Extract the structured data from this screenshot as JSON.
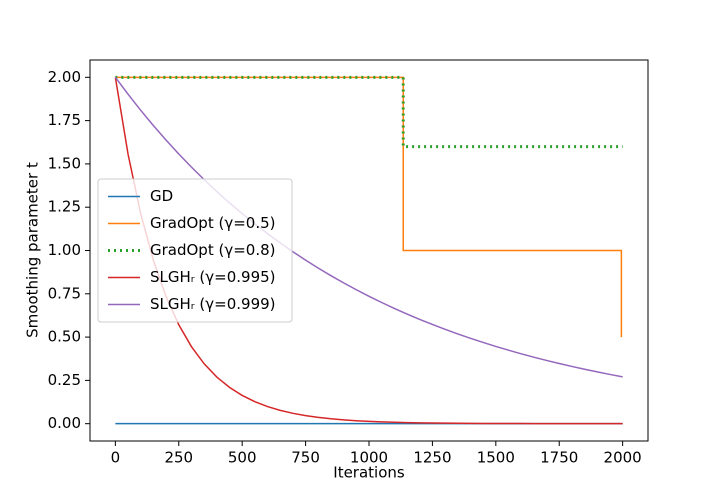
{
  "chart_data": {
    "type": "line",
    "x_label": "Iterations",
    "y_label": "Smoothing parameter t",
    "xlim": [
      -100,
      2100
    ],
    "ylim": [
      -0.1,
      2.1
    ],
    "xticks": [
      0,
      250,
      500,
      750,
      1000,
      1250,
      1500,
      1750,
      2000
    ],
    "yticks": [
      {
        "value": 0,
        "label": "0.00"
      },
      {
        "value": 0.25,
        "label": "0.25"
      },
      {
        "value": 0.5,
        "label": "0.50"
      },
      {
        "value": 0.75,
        "label": "0.75"
      },
      {
        "value": 1,
        "label": "1.00"
      },
      {
        "value": 1.25,
        "label": "1.25"
      },
      {
        "value": 1.5,
        "label": "1.50"
      },
      {
        "value": 1.75,
        "label": "1.75"
      },
      {
        "value": 2,
        "label": "2.00"
      }
    ],
    "grid": false,
    "legend": "center left",
    "series": [
      {
        "name": "GD",
        "color": "#1f77b4",
        "style": "solid",
        "x": [
          0,
          2000
        ],
        "values": [
          0,
          0
        ]
      },
      {
        "name": "GradOpt (γ=0.5)",
        "color": "#ff7f0e",
        "style": "solid",
        "x": [
          0,
          1135,
          1135,
          1995,
          1995
        ],
        "values": [
          2,
          2,
          1,
          1,
          0.5
        ]
      },
      {
        "name": "GradOpt (γ=0.8)",
        "color": "#2ca02c",
        "style": "dotted",
        "x": [
          0,
          1135,
          1135,
          2000
        ],
        "values": [
          2,
          2,
          1.6,
          1.6
        ]
      },
      {
        "name": "SLGHᵣ (γ=0.995)",
        "color": "#d62728",
        "style": "solid",
        "x": [
          0,
          50,
          100,
          150,
          200,
          250,
          300,
          350,
          400,
          450,
          500,
          550,
          600,
          650,
          700,
          750,
          800,
          850,
          900,
          950,
          1000,
          1050,
          1100,
          1150,
          1200,
          1250,
          1300,
          1350,
          1400,
          1450,
          1500,
          1550,
          1600,
          1650,
          1700,
          1750,
          1800,
          1850,
          1900,
          1950,
          2000
        ],
        "values": [
          2,
          1.5566,
          1.2115,
          0.9429,
          0.7339,
          0.5712,
          0.4446,
          0.346,
          0.2693,
          0.2096,
          0.1631,
          0.127,
          0.0988,
          0.0769,
          0.0599,
          0.0466,
          0.0363,
          0.0282,
          0.022,
          0.0171,
          0.0133,
          0.0104,
          0.0081,
          0.0063,
          0.0049,
          0.0038,
          0.003,
          0.0023,
          0.0018,
          0.0014,
          0.0011,
          0.0008,
          0.0007,
          0.0005,
          0.0004,
          0.0003,
          0.0002,
          0.0002,
          0.0001,
          0.0001,
          0.0001
        ]
      },
      {
        "name": "SLGHᵣ (γ=0.999)",
        "color": "#9467bd",
        "style": "solid",
        "x": [
          0,
          50,
          100,
          150,
          200,
          250,
          300,
          350,
          400,
          450,
          500,
          550,
          600,
          650,
          700,
          750,
          800,
          850,
          900,
          950,
          1000,
          1050,
          1100,
          1150,
          1200,
          1250,
          1300,
          1350,
          1400,
          1450,
          1500,
          1550,
          1600,
          1650,
          1700,
          1750,
          1800,
          1850,
          1900,
          1950,
          2000
        ],
        "values": [
          2,
          1.9024,
          1.8096,
          1.7213,
          1.6373,
          1.5574,
          1.4815,
          1.4092,
          1.3404,
          1.275,
          1.2128,
          1.1537,
          1.0974,
          1.0439,
          0.9929,
          0.9445,
          0.8984,
          0.8546,
          0.8129,
          0.7733,
          0.7355,
          0.6997,
          0.6655,
          0.6331,
          0.6022,
          0.5728,
          0.5449,
          0.5183,
          0.493,
          0.469,
          0.4461,
          0.4243,
          0.4036,
          0.384,
          0.3652,
          0.3474,
          0.3305,
          0.3143,
          0.299,
          0.2844,
          0.2705
        ]
      }
    ]
  }
}
